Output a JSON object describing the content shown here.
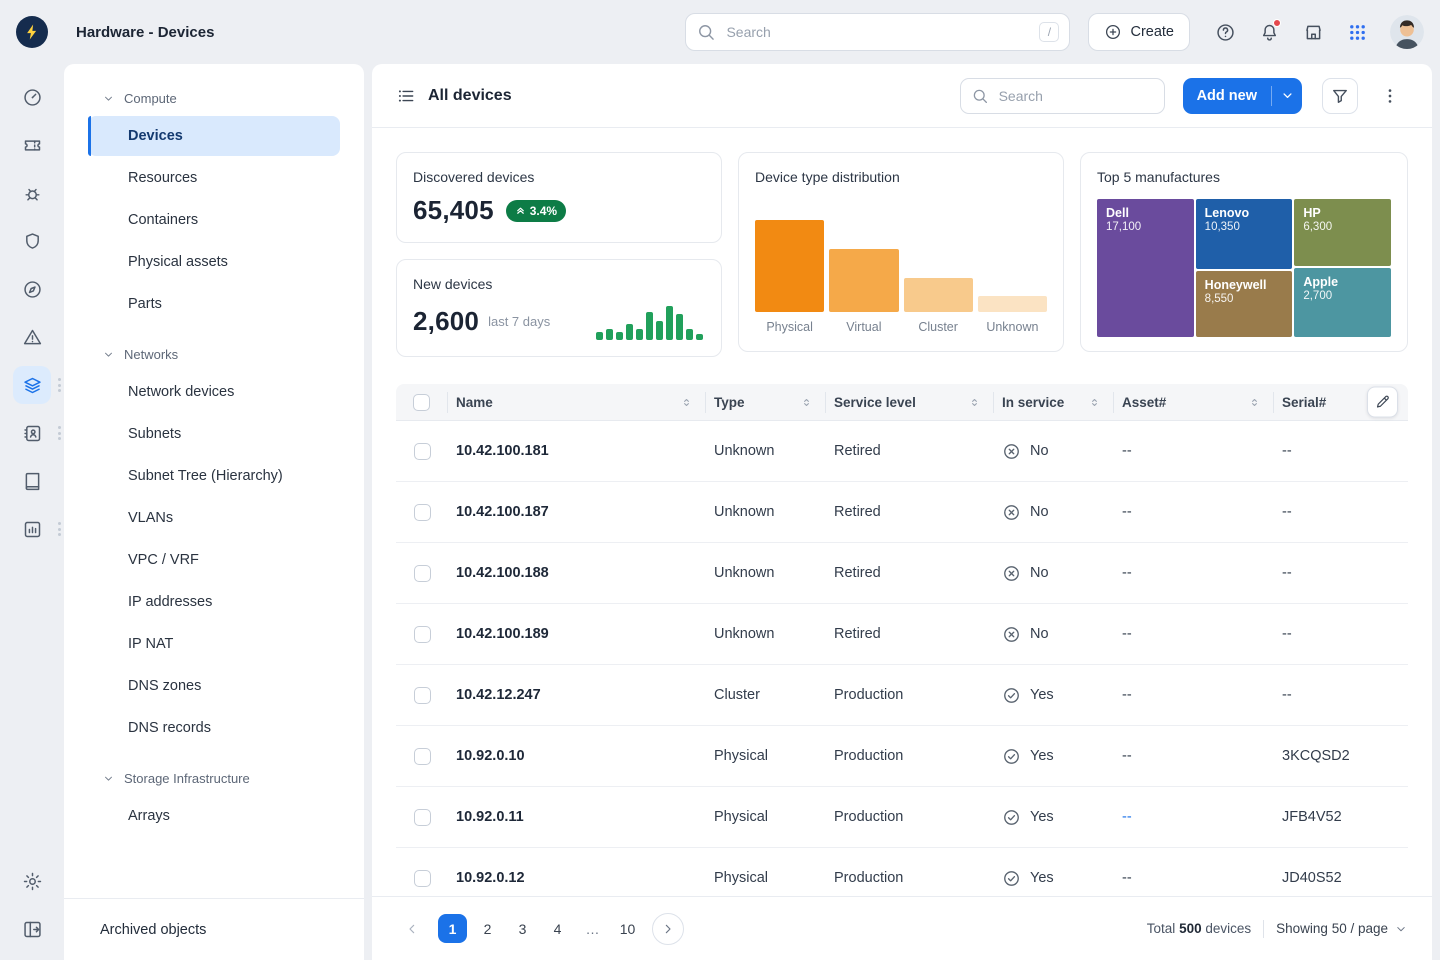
{
  "app": {
    "title": "Hardware - Devices",
    "search_placeholder": "Search",
    "search_shortcut": "/",
    "create_label": "Create"
  },
  "colors": {
    "accent_blue": "#1B72E8",
    "badge_green": "#0D7C46",
    "spark_green": "#21A05B",
    "alert_red": "#E5484D"
  },
  "sidebar": {
    "selected": "Devices",
    "sections": [
      {
        "label": "Compute",
        "items": [
          "Devices",
          "Resources",
          "Containers",
          "Physical assets",
          "Parts"
        ]
      },
      {
        "label": "Networks",
        "items": [
          "Network devices",
          "Subnets",
          "Subnet Tree (Hierarchy)",
          "VLANs",
          "VPC / VRF",
          "IP addresses",
          "IP NAT",
          "DNS zones",
          "DNS records"
        ]
      },
      {
        "label": "Storage Infrastructure",
        "items": [
          "Arrays"
        ]
      }
    ],
    "footer_label": "Archived objects"
  },
  "main": {
    "title": "All devices",
    "search_placeholder": "Search",
    "add_new_label": "Add new"
  },
  "stats": {
    "discovered": {
      "label": "Discovered devices",
      "value": "65,405",
      "delta": "3.4%"
    },
    "new_devices": {
      "label": "New devices",
      "value": "2,600",
      "caption": "last 7 days"
    }
  },
  "chart_data": [
    {
      "type": "bar",
      "title": "Device type distribution",
      "categories": [
        "Physical",
        "Virtual",
        "Cluster",
        "Unknown"
      ],
      "values": [
        100,
        68,
        37,
        17
      ],
      "note": "no numeric axis shown; values are relative bar heights in %",
      "colors": [
        "#F28A12",
        "#F5A949",
        "#F8CA8C",
        "#FBE3C3"
      ],
      "legend": "none",
      "grid": "off"
    },
    {
      "type": "treemap",
      "title": "Top 5 manufactures",
      "items": [
        {
          "name": "Dell",
          "value": 17100,
          "value_label": "17,100",
          "color": "#6A4B9D"
        },
        {
          "name": "Lenovo",
          "value": 10350,
          "value_label": "10,350",
          "color": "#1F5FA9"
        },
        {
          "name": "HP",
          "value": 6300,
          "value_label": "6,300",
          "color": "#7D8E4E"
        },
        {
          "name": "Honeywell",
          "value": 8550,
          "value_label": "8,550",
          "color": "#997B4B"
        },
        {
          "name": "Apple",
          "value": 2700,
          "value_label": "2,700",
          "color": "#4D96A1"
        }
      ]
    },
    {
      "type": "bar",
      "title": "New devices sparkline (last 7 days)",
      "values": [
        5,
        7,
        5,
        10,
        7,
        18,
        12,
        22,
        17,
        7,
        4
      ],
      "note": "small unlabeled sparkline; values are relative heights",
      "color": "#21A05B"
    }
  ],
  "table": {
    "columns": [
      "Name",
      "Type",
      "Service level",
      "In service",
      "Asset#",
      "Serial#"
    ],
    "rows": [
      {
        "name": "10.42.100.181",
        "type": "Unknown",
        "service": "Retired",
        "in_service": "No",
        "asset": "--",
        "serial": "--"
      },
      {
        "name": "10.42.100.187",
        "type": "Unknown",
        "service": "Retired",
        "in_service": "No",
        "asset": "--",
        "serial": "--"
      },
      {
        "name": "10.42.100.188",
        "type": "Unknown",
        "service": "Retired",
        "in_service": "No",
        "asset": "--",
        "serial": "--"
      },
      {
        "name": "10.42.100.189",
        "type": "Unknown",
        "service": "Retired",
        "in_service": "No",
        "asset": "--",
        "serial": "--"
      },
      {
        "name": "10.42.12.247",
        "type": "Cluster",
        "service": "Production",
        "in_service": "Yes",
        "asset": "--",
        "serial": "--"
      },
      {
        "name": "10.92.0.10",
        "type": "Physical",
        "service": "Production",
        "in_service": "Yes",
        "asset": "--",
        "serial": "3KCQSD2"
      },
      {
        "name": "10.92.0.11",
        "type": "Physical",
        "service": "Production",
        "in_service": "Yes",
        "asset": "--",
        "asset_link": true,
        "serial": "JFB4V52"
      },
      {
        "name": "10.92.0.12",
        "type": "Physical",
        "service": "Production",
        "in_service": "Yes",
        "asset": "--",
        "serial": "JD40S52"
      }
    ]
  },
  "pagination": {
    "pages": [
      "1",
      "2",
      "3",
      "4",
      "…",
      "10"
    ],
    "active": "1",
    "total_prefix": "Total",
    "total_count": "500",
    "total_suffix": "devices",
    "page_size_label": "Showing 50 / page"
  }
}
